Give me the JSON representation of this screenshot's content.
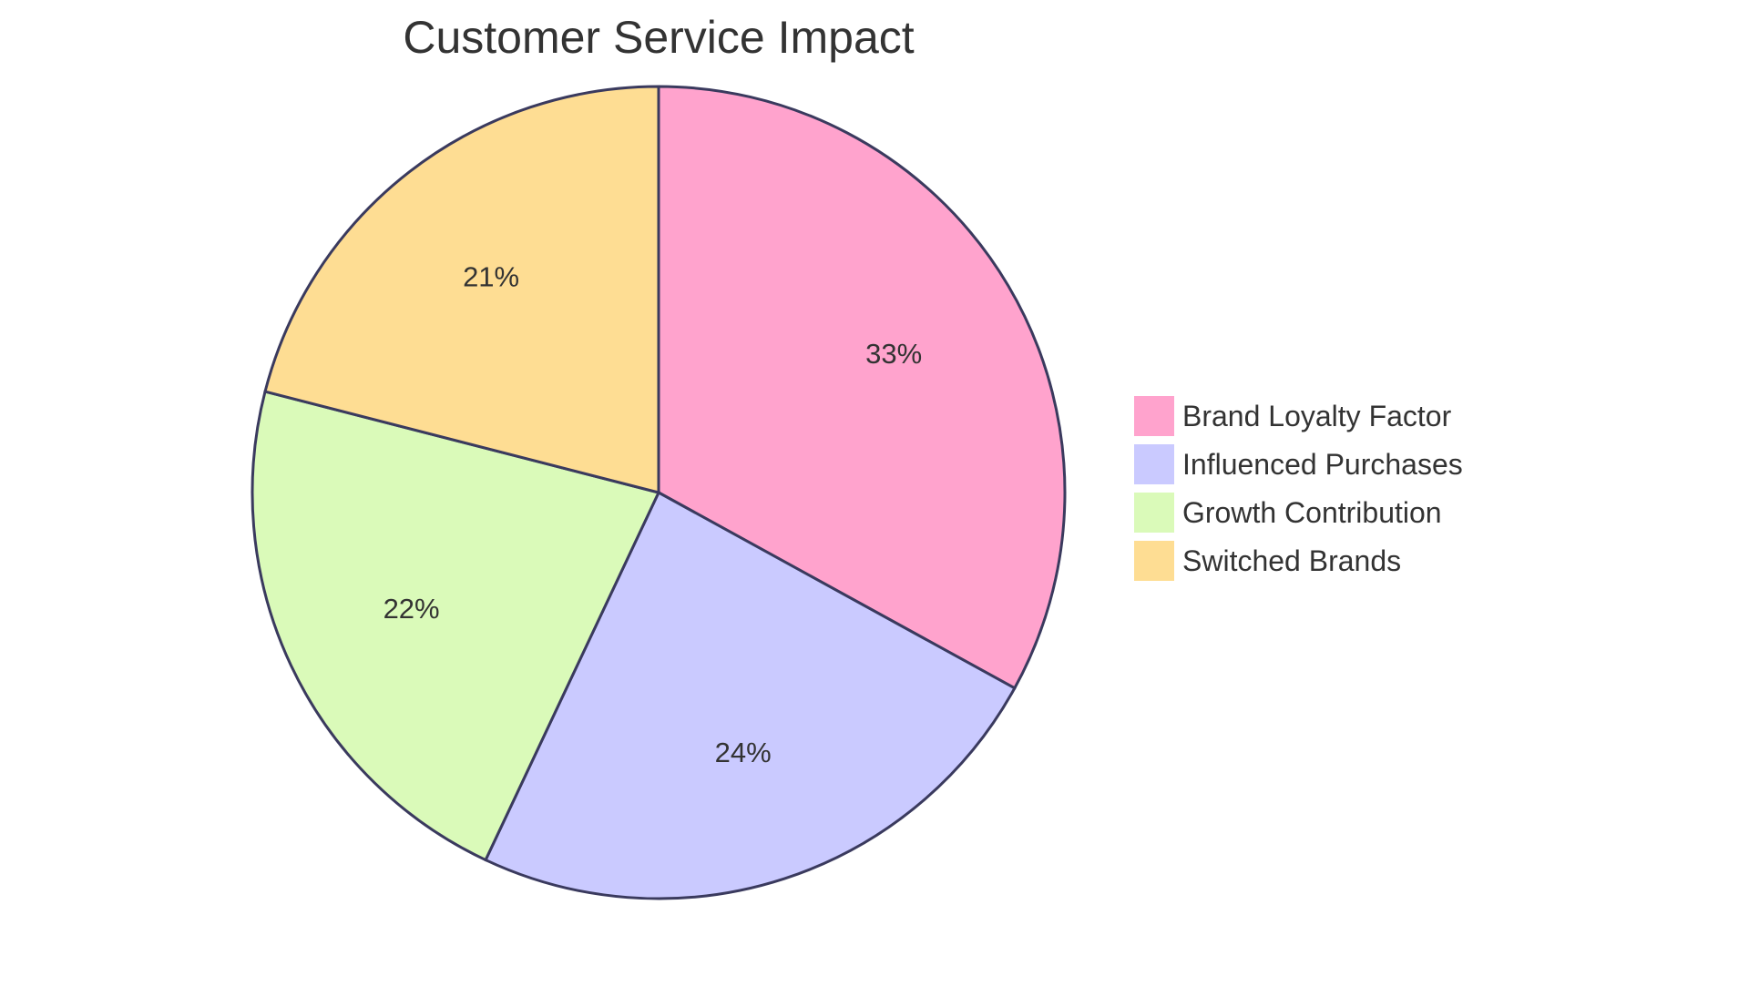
{
  "chart_data": {
    "type": "pie",
    "title": "Customer Service Impact",
    "slices": [
      {
        "label": "Brand Loyalty Factor",
        "value": 33,
        "display": "33%",
        "color": "#ffa3cd"
      },
      {
        "label": "Influenced Purchases",
        "value": 24,
        "display": "24%",
        "color": "#cacaff"
      },
      {
        "label": "Growth Contribution",
        "value": 22,
        "display": "22%",
        "color": "#dafab9"
      },
      {
        "label": "Switched Brands",
        "value": 21,
        "display": "21%",
        "color": "#fedd93"
      }
    ],
    "legend_position": "right"
  }
}
